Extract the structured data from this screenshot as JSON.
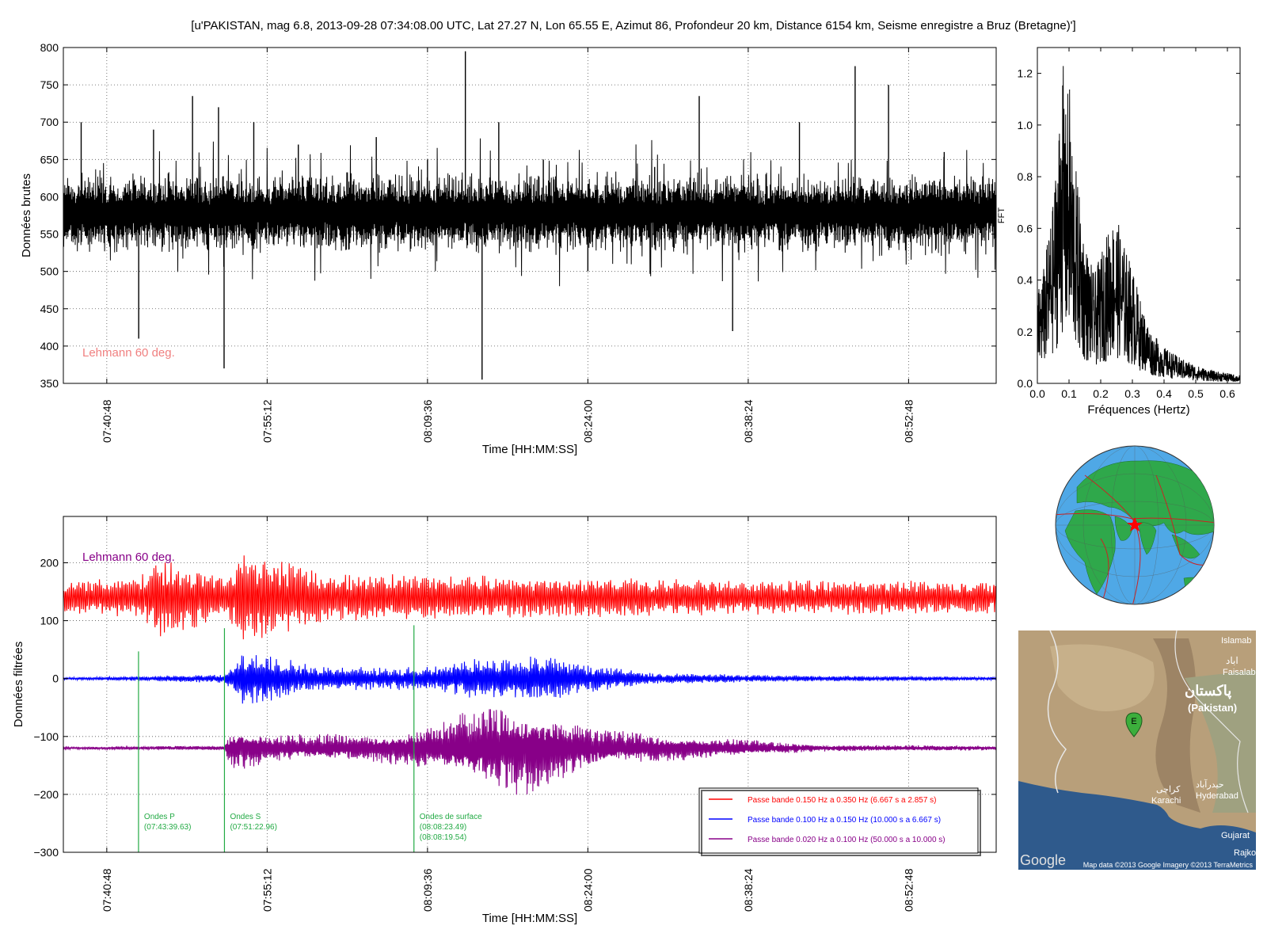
{
  "figure": {
    "title": "[u'PAKISTAN, mag 6.8, 2013-09-28 07:34:08.00 UTC, Lat 27.27 N, Lon 65.55 E, Azimut 86, Profondeur 20 km, Distance 6154 km, Seisme enregistre a Bruz (Bretagne)']"
  },
  "chart_data": [
    {
      "type": "line",
      "panel": "raw",
      "title": "",
      "xlabel": "Time [HH:MM:SS]",
      "ylabel": "Données brutes",
      "ylim": [
        350,
        800
      ],
      "xlim": [
        "07:36:54",
        "09:00:40"
      ],
      "yticks": [
        "350",
        "400",
        "450",
        "500",
        "550",
        "600",
        "650",
        "700",
        "750",
        "800"
      ],
      "xticks": [
        "07:40:48",
        "07:55:12",
        "08:09:36",
        "08:24:00",
        "08:38:24",
        "08:52:48"
      ],
      "grid": true,
      "annotation": "Lehmann 60 deg.",
      "side_label": "FFT",
      "series": [
        {
          "color": "#000000",
          "baseline": 578,
          "x": [
            "07:38:30",
            "07:43:40",
            "07:45:00",
            "07:48:30",
            "07:50:50",
            "07:51:20",
            "07:54:00",
            "07:58:00",
            "08:05:00",
            "08:09:36",
            "08:13:00",
            "08:14:30",
            "08:16:00",
            "08:20:00",
            "08:24:00",
            "08:30:00",
            "08:34:00",
            "08:37:00",
            "08:43:00",
            "08:48:00",
            "08:51:00",
            "08:56:00",
            "09:00:00"
          ],
          "y": [
            700,
            410,
            690,
            735,
            720,
            370,
            700,
            670,
            680,
            650,
            795,
            355,
            700,
            650,
            500,
            640,
            735,
            420,
            700,
            775,
            750,
            660,
            600
          ]
        }
      ]
    },
    {
      "type": "line",
      "panel": "spectrum",
      "xlabel": "Fréquences (Hertz)",
      "ylabel": "",
      "xlim": [
        0,
        0.64
      ],
      "ylim": [
        0,
        1.3
      ],
      "xticks": [
        "0.0",
        "0.1",
        "0.2",
        "0.3",
        "0.4",
        "0.5",
        "0.6"
      ],
      "yticks": [
        "0.0",
        "0.2",
        "0.4",
        "0.6",
        "0.8",
        "1.0",
        "1.2"
      ],
      "grid": false,
      "series": [
        {
          "color": "#000000",
          "x": [
            0.0,
            0.02,
            0.05,
            0.07,
            0.08,
            0.09,
            0.1,
            0.11,
            0.13,
            0.15,
            0.18,
            0.2,
            0.23,
            0.25,
            0.27,
            0.3,
            0.33,
            0.36,
            0.4,
            0.45,
            0.5,
            0.55,
            0.6,
            0.64
          ],
          "y": [
            0.35,
            0.45,
            0.7,
            1.05,
            1.27,
            1.05,
            1.2,
            0.95,
            0.75,
            0.55,
            0.42,
            0.5,
            0.62,
            0.65,
            0.55,
            0.45,
            0.3,
            0.2,
            0.14,
            0.1,
            0.07,
            0.05,
            0.04,
            0.03
          ]
        }
      ]
    },
    {
      "type": "line",
      "panel": "filtered",
      "xlabel": "Time [HH:MM:SS]",
      "ylabel": "Données filtrées",
      "ylim": [
        -300,
        280
      ],
      "xlim": [
        "07:36:54",
        "09:00:40"
      ],
      "yticks": [
        "−300",
        "−200",
        "−100",
        "0",
        "100",
        "200"
      ],
      "xticks": [
        "07:40:48",
        "07:55:12",
        "08:09:36",
        "08:24:00",
        "08:38:24",
        "08:52:48"
      ],
      "grid": true,
      "annotation": "Lehmann 60 deg.",
      "phases": [
        {
          "name": "Ondes P",
          "time": "(07:43:39.63)"
        },
        {
          "name": "Ondes S",
          "time": "(07:51:22.96)"
        },
        {
          "name": "Ondes de surface",
          "time": "(08:08:23.49)",
          "time2": "(08:08:19.54)"
        }
      ],
      "legend_position": "lower right",
      "series": [
        {
          "name": "Passe bande 0.150 Hz a 0.350 Hz (6.667 s a 2.857 s)",
          "color": "#ff0000",
          "offset": 140,
          "amp_x": [
            "07:36:54",
            "07:43:40",
            "07:45:30",
            "07:51:20",
            "07:53:00",
            "07:56:00",
            "08:00:00",
            "08:09:36",
            "08:24:00",
            "08:40:00",
            "09:00:40"
          ],
          "amp_y": [
            30,
            35,
            75,
            35,
            80,
            70,
            45,
            40,
            35,
            30,
            30
          ]
        },
        {
          "name": "Passe bande 0.100 Hz a 0.150 Hz (10.000 s a 6.667 s)",
          "color": "#0000ff",
          "offset": 0,
          "amp_x": [
            "07:36:54",
            "07:43:40",
            "07:51:20",
            "07:53:00",
            "07:56:00",
            "08:00:00",
            "08:09:36",
            "08:14:00",
            "08:20:00",
            "08:24:00",
            "08:30:00",
            "08:40:00",
            "09:00:40"
          ],
          "amp_y": [
            2,
            4,
            8,
            45,
            40,
            20,
            20,
            35,
            40,
            25,
            10,
            6,
            3
          ]
        },
        {
          "name": "Passe bande 0.020 Hz a 0.100 Hz (50.000 s a 10.000 s)",
          "color": "#880088",
          "offset": -120,
          "amp_x": [
            "07:36:54",
            "07:51:20",
            "07:52:00",
            "07:56:00",
            "08:05:00",
            "08:10:00",
            "08:14:00",
            "08:18:00",
            "08:24:00",
            "08:30:00",
            "08:38:00",
            "08:45:00",
            "09:00:40"
          ],
          "amp_y": [
            2,
            4,
            40,
            25,
            25,
            40,
            70,
            85,
            40,
            25,
            15,
            6,
            4
          ]
        }
      ]
    }
  ],
  "globe": {
    "ocean": "#4fa8e6",
    "land": "#2fa84b",
    "plates": "#cc2222",
    "marker": "#ff0000"
  },
  "map": {
    "labels": [
      "Islamab",
      "اباد",
      "Faisalab",
      "پاکستان",
      "(Pakistan)",
      "کراچی",
      "Karachi",
      "حیدرآباد",
      "Hyderabad",
      "Gujarat",
      "Rajko"
    ],
    "marker_label": "E",
    "logo": "Google",
    "attribution": "Map data ©2013 Google  Imagery ©2013 TerraMetrics"
  }
}
